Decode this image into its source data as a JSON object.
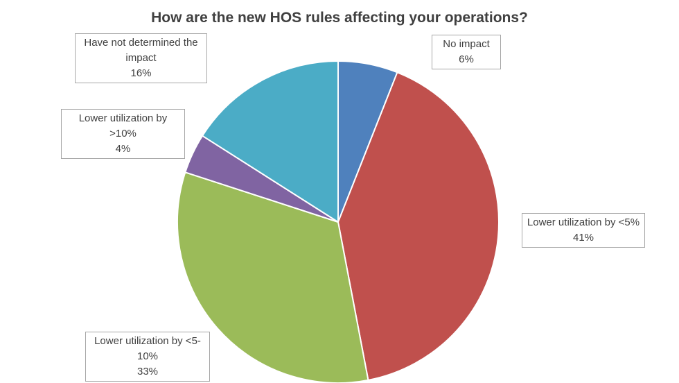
{
  "chart_data": {
    "type": "pie",
    "title": "How are the new HOS rules affecting your operations?",
    "categories": [
      "No impact",
      "Lower utilization by <5%",
      "Lower utilization by <5-10%",
      "Lower utilization by >10%",
      "Have not determined the impact"
    ],
    "values": [
      6,
      41,
      33,
      4,
      16
    ],
    "value_labels": [
      "6%",
      "41%",
      "33%",
      "4%",
      "16%"
    ],
    "colors": [
      "#4f81bd",
      "#c0504d",
      "#9bbb59",
      "#8064a2",
      "#4bacc6"
    ]
  }
}
